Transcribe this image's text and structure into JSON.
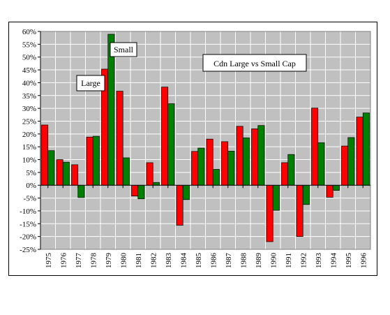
{
  "chart_data": {
    "type": "bar",
    "title": "Cdn Large vs Small Cap",
    "xlabel": "",
    "ylabel": "",
    "ylim": [
      -25,
      60
    ],
    "ytick_step": 5,
    "ytick_labels": [
      "60%",
      "55%",
      "50%",
      "45%",
      "40%",
      "35%",
      "30%",
      "25%",
      "20%",
      "15%",
      "10%",
      "5%",
      "0%",
      "-5%",
      "-10%",
      "-15%",
      "-20%",
      "-25%"
    ],
    "grid": true,
    "categories": [
      "1975",
      "1976",
      "1977",
      "1978",
      "1979",
      "1980",
      "1981",
      "1982",
      "1983",
      "1984",
      "1985",
      "1986",
      "1987",
      "1988",
      "1989",
      "1990",
      "1991",
      "1992",
      "1993",
      "1994",
      "1995",
      "1996"
    ],
    "series": [
      {
        "name": "Large",
        "color": "#ff0000",
        "values": [
          23.5,
          10,
          8,
          18.8,
          45.3,
          36.7,
          -4.2,
          8.8,
          38.3,
          -15.6,
          13.2,
          18,
          17,
          23,
          22,
          -22,
          8.8,
          -20,
          30.1,
          -4.7,
          15.3,
          26.6
        ]
      },
      {
        "name": "Small",
        "color": "#008000",
        "values": [
          13.5,
          9,
          -4.8,
          19.1,
          58.9,
          10.7,
          -5.3,
          1.1,
          31.8,
          -5.6,
          14.5,
          6.2,
          13.3,
          18.5,
          23.3,
          -9.8,
          12,
          -7.5,
          16.6,
          -2,
          18.6,
          28.2
        ]
      }
    ],
    "annotations": [
      {
        "text": "Large",
        "points_to": "1979"
      },
      {
        "text": "Small",
        "points_to": "1979"
      }
    ]
  }
}
